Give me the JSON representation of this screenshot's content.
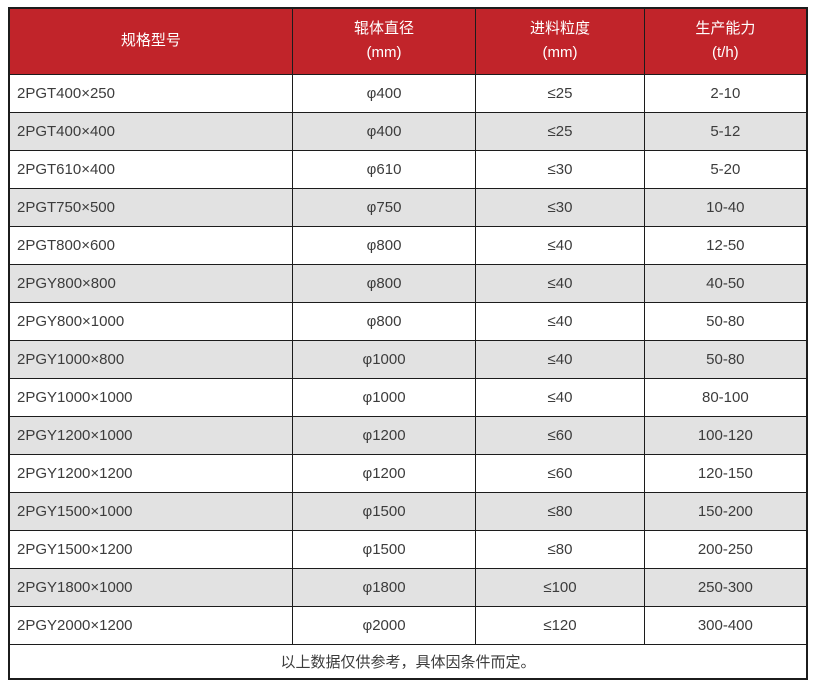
{
  "colors": {
    "header_bg": "#c1242a",
    "header_text": "#ffffff",
    "row_alt_bg": "#e2e2e2",
    "border": "#1c1c1c",
    "body_text": "#3c3c3c"
  },
  "table": {
    "headers": [
      {
        "line1": "规格型号",
        "line2": ""
      },
      {
        "line1": "辊体直径",
        "line2": "(mm)"
      },
      {
        "line1": "进料粒度",
        "line2": "(mm)"
      },
      {
        "line1": "生产能力",
        "line2": "(t/h)"
      }
    ],
    "rows": [
      [
        "2PGT400×250",
        "φ400",
        "≤25",
        "2-10"
      ],
      [
        "2PGT400×400",
        "φ400",
        "≤25",
        "5-12"
      ],
      [
        "2PGT610×400",
        "φ610",
        "≤30",
        "5-20"
      ],
      [
        "2PGT750×500",
        "φ750",
        "≤30",
        "10-40"
      ],
      [
        "2PGT800×600",
        "φ800",
        "≤40",
        "12-50"
      ],
      [
        "2PGY800×800",
        "φ800",
        "≤40",
        "40-50"
      ],
      [
        "2PGY800×1000",
        "φ800",
        "≤40",
        "50-80"
      ],
      [
        "2PGY1000×800",
        "φ1000",
        "≤40",
        "50-80"
      ],
      [
        "2PGY1000×1000",
        "φ1000",
        "≤40",
        "80-100"
      ],
      [
        "2PGY1200×1000",
        "φ1200",
        "≤60",
        "100-120"
      ],
      [
        "2PGY1200×1200",
        "φ1200",
        "≤60",
        "120-150"
      ],
      [
        "2PGY1500×1000",
        "φ1500",
        "≤80",
        "150-200"
      ],
      [
        "2PGY1500×1200",
        "φ1500",
        "≤80",
        "200-250"
      ],
      [
        "2PGY1800×1000",
        "φ1800",
        "≤100",
        "250-300"
      ],
      [
        "2PGY2000×1200",
        "φ2000",
        "≤120",
        "300-400"
      ]
    ],
    "footnote": "以上数据仅供参考，具体因条件而定。"
  }
}
